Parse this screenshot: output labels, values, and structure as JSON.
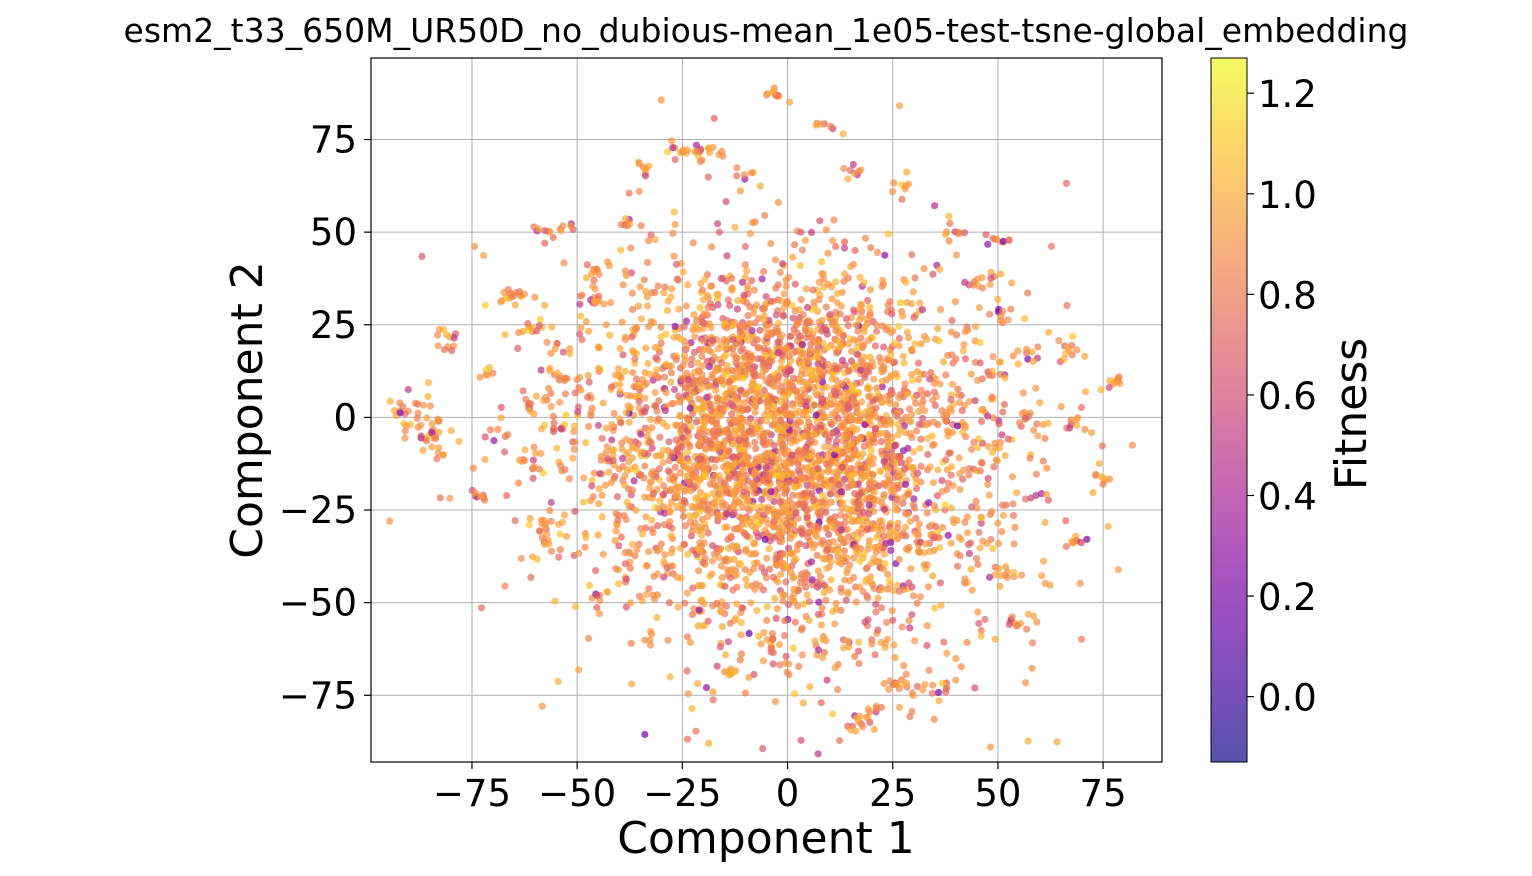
{
  "chart_data": {
    "type": "scatter",
    "title": "esm2_t33_650M_UR50D_no_dubious-mean_1e05-test-tsne-global_embedding",
    "xlabel": "Component 1",
    "ylabel": "Component 2",
    "xlim": [
      -99,
      89
    ],
    "ylim": [
      -93,
      97
    ],
    "xticks": [
      -75,
      -50,
      -25,
      0,
      25,
      50,
      75
    ],
    "yticks": [
      -75,
      -50,
      -25,
      0,
      25,
      50,
      75
    ],
    "xtick_labels": [
      "−75",
      "−50",
      "−25",
      "0",
      "25",
      "50",
      "75"
    ],
    "ytick_labels": [
      "−75",
      "−50",
      "−25",
      "0",
      "25",
      "50",
      "75"
    ],
    "grid": true,
    "colormap": "plasma",
    "marker_alpha": 0.7,
    "colorbar": {
      "label": "Fitness",
      "range": [
        -0.13,
        1.27
      ],
      "ticks": [
        0.0,
        0.2,
        0.4,
        0.6,
        0.8,
        1.0,
        1.2
      ],
      "tick_labels": [
        "0.0",
        "0.2",
        "0.4",
        "0.6",
        "0.8",
        "1.0",
        "1.2"
      ]
    },
    "clusters": [
      {
        "x": -2,
        "y": -5,
        "sx": 22,
        "sy": 22,
        "n": 2600
      },
      {
        "x": 5,
        "y": -15,
        "sx": 30,
        "sy": 30,
        "n": 1100
      },
      {
        "x": -89,
        "y": 1,
        "sx": 3,
        "sy": 3,
        "n": 25
      },
      {
        "x": -84,
        "y": -5,
        "sx": 3,
        "sy": 3,
        "n": 25
      },
      {
        "x": -81,
        "y": 21,
        "sx": 1.5,
        "sy": 2,
        "n": 12
      },
      {
        "x": -73,
        "y": -21,
        "sx": 1,
        "sy": 1,
        "n": 8
      },
      {
        "x": -66,
        "y": 32,
        "sx": 2.5,
        "sy": 1.5,
        "n": 18
      },
      {
        "x": -60,
        "y": 24,
        "sx": 1.5,
        "sy": 1.5,
        "n": 10
      },
      {
        "x": -58,
        "y": 49,
        "sx": 1.5,
        "sy": 1.5,
        "n": 8
      },
      {
        "x": -53,
        "y": 51,
        "sx": 1.5,
        "sy": 1,
        "n": 6
      },
      {
        "x": -57,
        "y": -28,
        "sx": 2,
        "sy": 2,
        "n": 14
      },
      {
        "x": -57,
        "y": -33,
        "sx": 1.5,
        "sy": 1.5,
        "n": 8
      },
      {
        "x": -46,
        "y": 33,
        "sx": 2,
        "sy": 2,
        "n": 14
      },
      {
        "x": -46,
        "y": 40,
        "sx": 1.5,
        "sy": 1,
        "n": 8
      },
      {
        "x": -34,
        "y": 66,
        "sx": 1.5,
        "sy": 1,
        "n": 8
      },
      {
        "x": -25,
        "y": 72,
        "sx": 2,
        "sy": 1,
        "n": 12
      },
      {
        "x": -19,
        "y": 72,
        "sx": 2,
        "sy": 1.5,
        "n": 14
      },
      {
        "x": -11,
        "y": 66,
        "sx": 1.5,
        "sy": 1,
        "n": 6
      },
      {
        "x": -3,
        "y": 87,
        "sx": 1.5,
        "sy": 1,
        "n": 10
      },
      {
        "x": 9,
        "y": 79,
        "sx": 1,
        "sy": 0.8,
        "n": 6
      },
      {
        "x": 16,
        "y": 67,
        "sx": 1.5,
        "sy": 1,
        "n": 6
      },
      {
        "x": 27,
        "y": 62,
        "sx": 1.5,
        "sy": 2,
        "n": 8
      },
      {
        "x": 78,
        "y": 10,
        "sx": 1.2,
        "sy": 1.2,
        "n": 10
      },
      {
        "x": 67,
        "y": 18,
        "sx": 2,
        "sy": 1.5,
        "n": 12
      },
      {
        "x": 69,
        "y": -2,
        "sx": 1.5,
        "sy": 1,
        "n": 8
      },
      {
        "x": 74,
        "y": -17,
        "sx": 1.5,
        "sy": 2,
        "n": 8
      },
      {
        "x": 68,
        "y": -33,
        "sx": 1.5,
        "sy": 1,
        "n": 8
      },
      {
        "x": 55,
        "y": -56,
        "sx": 1.5,
        "sy": 1,
        "n": 8
      },
      {
        "x": 50,
        "y": -42,
        "sx": 2,
        "sy": 1.5,
        "n": 10
      },
      {
        "x": 21,
        "y": -80,
        "sx": 2,
        "sy": 2,
        "n": 12
      },
      {
        "x": 16,
        "y": -83,
        "sx": 1.5,
        "sy": 1,
        "n": 8
      },
      {
        "x": 25,
        "y": -72,
        "sx": 1.5,
        "sy": 1.5,
        "n": 8
      },
      {
        "x": 30,
        "y": -73,
        "sx": 2,
        "sy": 2,
        "n": 10
      },
      {
        "x": 37,
        "y": -73,
        "sx": 1.5,
        "sy": 2,
        "n": 8
      },
      {
        "x": 0,
        "y": -67,
        "sx": 1.5,
        "sy": 1.5,
        "n": 8
      },
      {
        "x": -14,
        "y": -68,
        "sx": 1,
        "sy": 1,
        "n": 6
      },
      {
        "x": -5,
        "y": -59,
        "sx": 1.5,
        "sy": 1,
        "n": 8
      },
      {
        "x": 15,
        "y": -62,
        "sx": 1.5,
        "sy": 1,
        "n": 6
      },
      {
        "x": -45,
        "y": -48,
        "sx": 1.5,
        "sy": 1,
        "n": 6
      },
      {
        "x": -31,
        "y": -60,
        "sx": 1,
        "sy": 1,
        "n": 4
      },
      {
        "x": -38,
        "y": 53,
        "sx": 1.5,
        "sy": 1,
        "n": 8
      },
      {
        "x": 40,
        "y": 50,
        "sx": 1.5,
        "sy": 1.5,
        "n": 8
      },
      {
        "x": 50,
        "y": 47,
        "sx": 1.5,
        "sy": 1,
        "n": 8
      },
      {
        "x": 44,
        "y": 36,
        "sx": 1.5,
        "sy": 1,
        "n": 8
      },
      {
        "x": 52,
        "y": 29,
        "sx": 2,
        "sy": 2,
        "n": 10
      },
      {
        "x": 58,
        "y": 18,
        "sx": 1.5,
        "sy": 1.5,
        "n": 8
      },
      {
        "x": 57,
        "y": 0,
        "sx": 2,
        "sy": 2,
        "n": 10
      },
      {
        "x": -61,
        "y": 4,
        "sx": 1.5,
        "sy": 1.5,
        "n": 8
      },
      {
        "x": -55,
        "y": -4,
        "sx": 1.5,
        "sy": 1.5,
        "n": 8
      },
      {
        "x": -61,
        "y": -13,
        "sx": 1.5,
        "sy": 1.5,
        "n": 8
      },
      {
        "x": -55,
        "y": 11,
        "sx": 1.5,
        "sy": 1.5,
        "n": 8
      },
      {
        "x": -71,
        "y": 12,
        "sx": 1,
        "sy": 1,
        "n": 6
      }
    ]
  }
}
